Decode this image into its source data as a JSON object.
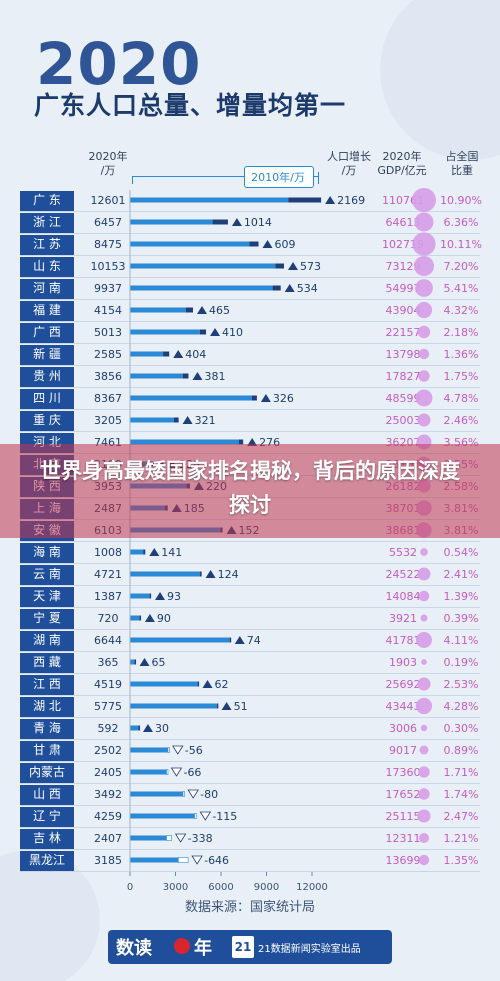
{
  "header": {
    "year": "2020",
    "title": "广东人口总量、增量均第一",
    "col_pop": "2020年\n/万",
    "col_legend": "2010年/万",
    "col_inc": "人口增长\n/万",
    "col_gdp": "2020年\nGDP/亿元",
    "col_share": "占全国\n比重"
  },
  "source": "数据来源：国家统计局",
  "footer": {
    "brand_left": "数读",
    "brand_right": "年",
    "num": "21",
    "org": "21数据新闻实验室出品"
  },
  "overlay": {
    "text": "世界身高最矮国家排名揭秘，背后的原因深度探讨"
  },
  "colors": {
    "bar_2010": "#2a8ad6",
    "bar_growth": "#1f3f7a",
    "bar_decline": "#ffffff",
    "bubble": "#d79ce8",
    "row_label_bg": "#1f4f9a",
    "gdp_text": "#c45cc2",
    "share_text": "#c45cc2"
  },
  "chart_data": {
    "type": "bar",
    "xlim": [
      0,
      12000
    ],
    "xticks": [
      "0",
      "3000",
      "6000",
      "9000",
      "12000"
    ],
    "rows": [
      {
        "province": "广 东",
        "pop2020": "12601",
        "inc": "2169",
        "gdp": "110761",
        "share": "10.90%"
      },
      {
        "province": "浙 江",
        "pop2020": "6457",
        "inc": "1014",
        "gdp": "64613",
        "share": "6.36%"
      },
      {
        "province": "江 苏",
        "pop2020": "8475",
        "inc": "609",
        "gdp": "102719",
        "share": "10.11%"
      },
      {
        "province": "山 东",
        "pop2020": "10153",
        "inc": "573",
        "gdp": "73129",
        "share": "7.20%"
      },
      {
        "province": "河 南",
        "pop2020": "9937",
        "inc": "534",
        "gdp": "54997",
        "share": "5.41%"
      },
      {
        "province": "福 建",
        "pop2020": "4154",
        "inc": "465",
        "gdp": "43904",
        "share": "4.32%"
      },
      {
        "province": "广 西",
        "pop2020": "5013",
        "inc": "410",
        "gdp": "22157",
        "share": "2.18%"
      },
      {
        "province": "新 疆",
        "pop2020": "2585",
        "inc": "404",
        "gdp": "13798",
        "share": "1.36%"
      },
      {
        "province": "贵 州",
        "pop2020": "3856",
        "inc": "381",
        "gdp": "17827",
        "share": "1.75%"
      },
      {
        "province": "四 川",
        "pop2020": "8367",
        "inc": "326",
        "gdp": "48599",
        "share": "4.78%"
      },
      {
        "province": "重 庆",
        "pop2020": "3205",
        "inc": "321",
        "gdp": "25003",
        "share": "2.46%"
      },
      {
        "province": "河 北",
        "pop2020": "7461",
        "inc": "276",
        "gdp": "36207",
        "share": "3.56%"
      },
      {
        "province": "北 京",
        "pop2020": "2189",
        "inc": "228",
        "gdp": "36103",
        "share": "3.55%"
      },
      {
        "province": "陕 西",
        "pop2020": "3953",
        "inc": "220",
        "gdp": "26182",
        "share": "2.58%"
      },
      {
        "province": "上 海",
        "pop2020": "2487",
        "inc": "185",
        "gdp": "38701",
        "share": "3.81%"
      },
      {
        "province": "安 徽",
        "pop2020": "6103",
        "inc": "152",
        "gdp": "38681",
        "share": "3.81%"
      },
      {
        "province": "海 南",
        "pop2020": "1008",
        "inc": "141",
        "gdp": "5532",
        "share": "0.54%"
      },
      {
        "province": "云 南",
        "pop2020": "4721",
        "inc": "124",
        "gdp": "24522",
        "share": "2.41%"
      },
      {
        "province": "天 津",
        "pop2020": "1387",
        "inc": "93",
        "gdp": "14084",
        "share": "1.39%"
      },
      {
        "province": "宁 夏",
        "pop2020": "720",
        "inc": "90",
        "gdp": "3921",
        "share": "0.39%"
      },
      {
        "province": "湖 南",
        "pop2020": "6644",
        "inc": "74",
        "gdp": "41781",
        "share": "4.11%"
      },
      {
        "province": "西 藏",
        "pop2020": "365",
        "inc": "65",
        "gdp": "1903",
        "share": "0.19%"
      },
      {
        "province": "江 西",
        "pop2020": "4519",
        "inc": "62",
        "gdp": "25692",
        "share": "2.53%"
      },
      {
        "province": "湖 北",
        "pop2020": "5775",
        "inc": "51",
        "gdp": "43443",
        "share": "4.28%"
      },
      {
        "province": "青 海",
        "pop2020": "592",
        "inc": "30",
        "gdp": "3006",
        "share": "0.30%"
      },
      {
        "province": "甘 肃",
        "pop2020": "2502",
        "inc": "-56",
        "gdp": "9017",
        "share": "0.89%"
      },
      {
        "province": "内蒙古",
        "pop2020": "2405",
        "inc": "-66",
        "gdp": "17360",
        "share": "1.71%"
      },
      {
        "province": "山 西",
        "pop2020": "3492",
        "inc": "-80",
        "gdp": "17652",
        "share": "1.74%"
      },
      {
        "province": "辽 宁",
        "pop2020": "4259",
        "inc": "-115",
        "gdp": "25115",
        "share": "2.47%"
      },
      {
        "province": "吉 林",
        "pop2020": "2407",
        "inc": "-338",
        "gdp": "12311",
        "share": "1.21%"
      },
      {
        "province": "黑龙江",
        "pop2020": "3185",
        "inc": "-646",
        "gdp": "13699",
        "share": "1.35%"
      }
    ]
  }
}
